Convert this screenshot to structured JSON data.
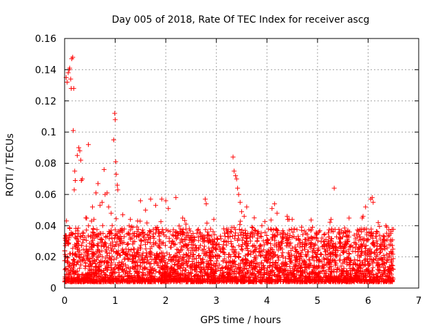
{
  "chart_data": {
    "type": "scatter",
    "title": "Day 005 of 2018, Rate Of TEC Index for receiver ascg",
    "xlabel": "GPS time / hours",
    "ylabel": "ROTI / TECUs",
    "xlim": [
      0,
      7
    ],
    "ylim": [
      0,
      0.16
    ],
    "xticks": [
      0,
      1,
      2,
      3,
      4,
      5,
      6,
      7
    ],
    "xtick_labels": [
      "0",
      "1",
      "2",
      "3",
      "4",
      "5",
      "6",
      "7"
    ],
    "yticks": [
      0,
      0.02,
      0.04,
      0.06,
      0.08,
      0.1,
      0.12,
      0.14,
      0.16
    ],
    "ytick_labels": [
      "0",
      "0.02",
      "0.04",
      "0.06",
      "0.08",
      "0.1",
      "0.12",
      "0.14",
      "0.16"
    ],
    "grid": true,
    "marker": "+",
    "color": "#ff0000",
    "series": [
      {
        "name": "ROTI",
        "points": [
          [
            0.02,
            0.032
          ],
          [
            0.03,
            0.135
          ],
          [
            0.05,
            0.132
          ],
          [
            0.07,
            0.138
          ],
          [
            0.09,
            0.14
          ],
          [
            0.1,
            0.141
          ],
          [
            0.12,
            0.134
          ],
          [
            0.13,
            0.128
          ],
          [
            0.14,
            0.147
          ],
          [
            0.16,
            0.148
          ],
          [
            0.17,
            0.101
          ],
          [
            0.18,
            0.128
          ],
          [
            0.19,
            0.063
          ],
          [
            0.2,
            0.075
          ],
          [
            0.21,
            0.069
          ],
          [
            0.25,
            0.085
          ],
          [
            0.28,
            0.09
          ],
          [
            0.3,
            0.088
          ],
          [
            0.32,
            0.082
          ],
          [
            0.33,
            0.069
          ],
          [
            0.35,
            0.07
          ],
          [
            0.42,
            0.045
          ],
          [
            0.47,
            0.092
          ],
          [
            0.55,
            0.052
          ],
          [
            0.58,
            0.044
          ],
          [
            0.62,
            0.061
          ],
          [
            0.66,
            0.067
          ],
          [
            0.7,
            0.053
          ],
          [
            0.74,
            0.055
          ],
          [
            0.78,
            0.076
          ],
          [
            0.8,
            0.06
          ],
          [
            0.84,
            0.061
          ],
          [
            0.87,
            0.052
          ],
          [
            0.92,
            0.048
          ],
          [
            0.97,
            0.095
          ],
          [
            0.99,
            0.112
          ],
          [
            1.0,
            0.108
          ],
          [
            1.01,
            0.081
          ],
          [
            1.02,
            0.073
          ],
          [
            1.04,
            0.066
          ],
          [
            1.05,
            0.063
          ],
          [
            1.15,
            0.047
          ],
          [
            1.3,
            0.044
          ],
          [
            1.5,
            0.056
          ],
          [
            1.6,
            0.05
          ],
          [
            1.7,
            0.057
          ],
          [
            1.8,
            0.053
          ],
          [
            1.92,
            0.057
          ],
          [
            2.0,
            0.056
          ],
          [
            2.05,
            0.051
          ],
          [
            2.2,
            0.058
          ],
          [
            2.4,
            0.041
          ],
          [
            2.78,
            0.057
          ],
          [
            2.8,
            0.054
          ],
          [
            2.95,
            0.044
          ],
          [
            3.33,
            0.084
          ],
          [
            3.35,
            0.075
          ],
          [
            3.38,
            0.072
          ],
          [
            3.4,
            0.07
          ],
          [
            3.42,
            0.064
          ],
          [
            3.44,
            0.06
          ],
          [
            3.47,
            0.055
          ],
          [
            3.5,
            0.049
          ],
          [
            3.55,
            0.046
          ],
          [
            3.6,
            0.052
          ],
          [
            3.75,
            0.045
          ],
          [
            3.9,
            0.04
          ],
          [
            4.1,
            0.051
          ],
          [
            4.15,
            0.054
          ],
          [
            4.2,
            0.048
          ],
          [
            4.4,
            0.046
          ],
          [
            4.5,
            0.044
          ],
          [
            4.9,
            0.039
          ],
          [
            5.33,
            0.064
          ],
          [
            5.6,
            0.037
          ],
          [
            5.9,
            0.046
          ],
          [
            5.95,
            0.052
          ],
          [
            6.05,
            0.057
          ],
          [
            6.08,
            0.058
          ],
          [
            6.1,
            0.055
          ],
          [
            6.2,
            0.042
          ],
          [
            6.35,
            0.04
          ],
          [
            6.45,
            0.035
          ]
        ]
      }
    ]
  }
}
